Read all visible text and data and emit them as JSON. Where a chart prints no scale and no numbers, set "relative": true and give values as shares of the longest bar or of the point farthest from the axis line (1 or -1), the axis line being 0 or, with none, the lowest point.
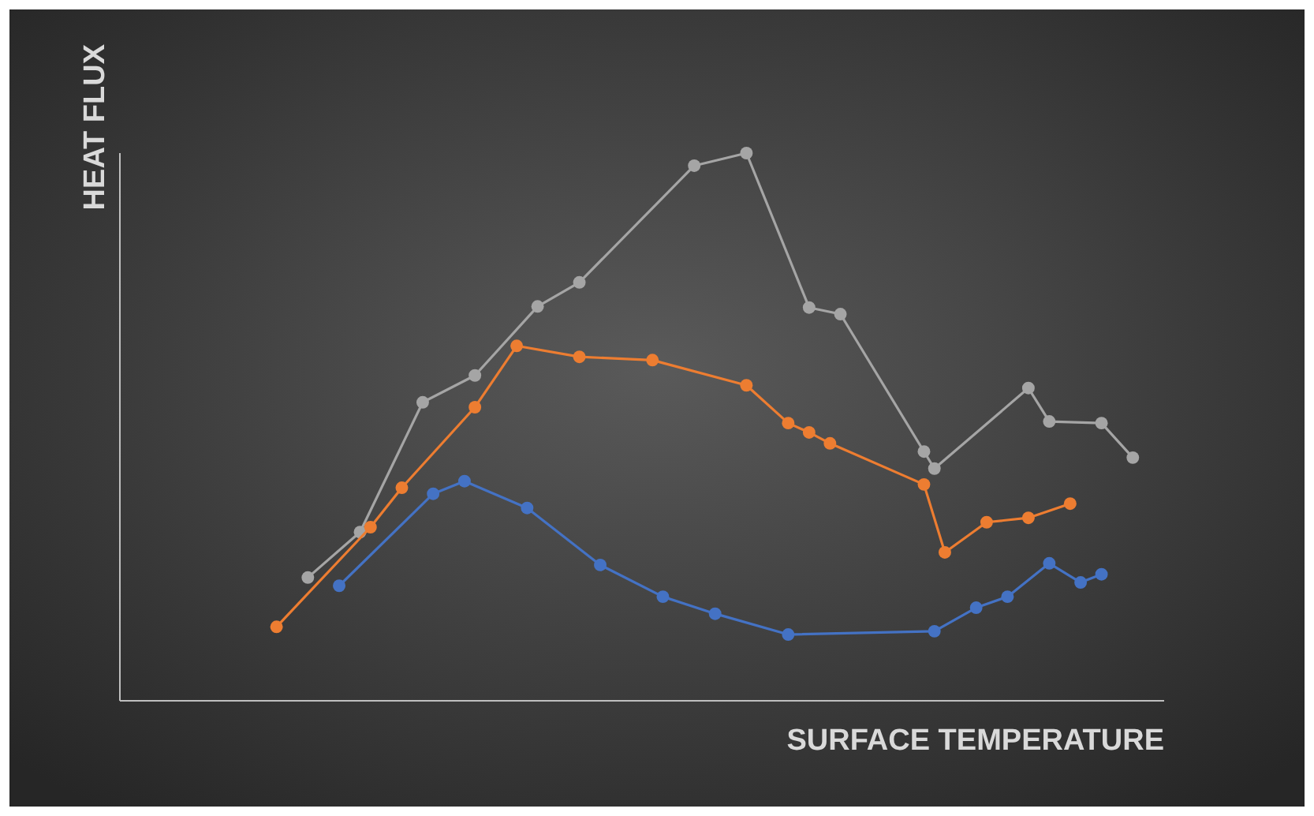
{
  "chart_data": {
    "type": "line",
    "relative": true,
    "xlabel": "SURFACE TEMPERATURE",
    "ylabel": "HEAT FLUX",
    "marker": "circle",
    "line_style": "solid",
    "categories": [
      null,
      null,
      null,
      null,
      null,
      null,
      null,
      null,
      null,
      null,
      null,
      null,
      null,
      null,
      null,
      null,
      null,
      null,
      null,
      null,
      null,
      null,
      null,
      null,
      null,
      null,
      null,
      null,
      null,
      null,
      null,
      null,
      null,
      null,
      null,
      null,
      null,
      null,
      null,
      null,
      null,
      null,
      null,
      null,
      null,
      null,
      null,
      null,
      null,
      null,
      null,
      null,
      null,
      null,
      null,
      null,
      null,
      null,
      null,
      null,
      null,
      null,
      null,
      null,
      null,
      null,
      null,
      null,
      null,
      null,
      null,
      null,
      null,
      null,
      null,
      null,
      null,
      null,
      null,
      null,
      null,
      null,
      null,
      null,
      null,
      null,
      null,
      null,
      null,
      null,
      null,
      null,
      null,
      null,
      null,
      null,
      null,
      null,
      null,
      null,
      null
    ],
    "series": [
      {
        "color": "#a5a5a5",
        "values": [
          null,
          null,
          null,
          null,
          null,
          null,
          null,
          null,
          null,
          null,
          null,
          null,
          null,
          null,
          null,
          null,
          null,
          null,
          0.225,
          null,
          null,
          null,
          null,
          0.308,
          null,
          null,
          null,
          null,
          null,
          0.545,
          null,
          null,
          null,
          null,
          0.594,
          null,
          null,
          null,
          null,
          null,
          0.72,
          null,
          null,
          null,
          0.764,
          null,
          null,
          null,
          null,
          null,
          null,
          null,
          null,
          null,
          null,
          0.977,
          null,
          null,
          null,
          null,
          1,
          null,
          null,
          null,
          null,
          null,
          0.718,
          null,
          null,
          0.706,
          null,
          null,
          null,
          null,
          null,
          null,
          null,
          0.455,
          0.424,
          null,
          null,
          null,
          null,
          null,
          null,
          null,
          null,
          0.571,
          null,
          0.51,
          null,
          null,
          null,
          null,
          0.507,
          null,
          null,
          0.444,
          null,
          null,
          null
        ]
      },
      {
        "color": "#ed7d31",
        "values": [
          null,
          null,
          null,
          null,
          null,
          null,
          null,
          null,
          null,
          null,
          null,
          null,
          null,
          null,
          null,
          0.135,
          null,
          null,
          null,
          null,
          null,
          null,
          null,
          null,
          0.317,
          null,
          null,
          0.389,
          null,
          null,
          null,
          null,
          null,
          null,
          0.536,
          null,
          null,
          null,
          0.648,
          null,
          null,
          null,
          null,
          null,
          0.628,
          null,
          null,
          null,
          null,
          null,
          null,
          0.622,
          null,
          null,
          null,
          null,
          null,
          null,
          null,
          null,
          0.576,
          null,
          null,
          null,
          0.507,
          null,
          0.49,
          null,
          0.47,
          null,
          null,
          null,
          null,
          null,
          null,
          null,
          null,
          0.395,
          null,
          0.271,
          null,
          null,
          null,
          0.326,
          null,
          null,
          null,
          0.334,
          null,
          null,
          null,
          0.36,
          null,
          null,
          null,
          null,
          null,
          null,
          null,
          null,
          null
        ]
      },
      {
        "color": "#4472c4",
        "values": [
          null,
          null,
          null,
          null,
          null,
          null,
          null,
          null,
          null,
          null,
          null,
          null,
          null,
          null,
          null,
          null,
          null,
          null,
          null,
          null,
          null,
          0.21,
          null,
          null,
          null,
          null,
          null,
          null,
          null,
          null,
          0.378,
          null,
          null,
          0.401,
          null,
          null,
          null,
          null,
          null,
          0.352,
          null,
          null,
          null,
          null,
          null,
          null,
          0.248,
          null,
          null,
          null,
          null,
          null,
          0.19,
          null,
          null,
          null,
          null,
          0.159,
          null,
          null,
          null,
          null,
          null,
          null,
          0.121,
          null,
          null,
          null,
          null,
          null,
          null,
          null,
          null,
          null,
          null,
          null,
          null,
          null,
          0.127,
          null,
          null,
          null,
          0.17,
          null,
          null,
          0.19,
          null,
          null,
          null,
          0.251,
          null,
          null,
          0.216,
          null,
          0.231,
          null,
          null,
          null,
          null,
          null,
          null
        ]
      }
    ]
  }
}
